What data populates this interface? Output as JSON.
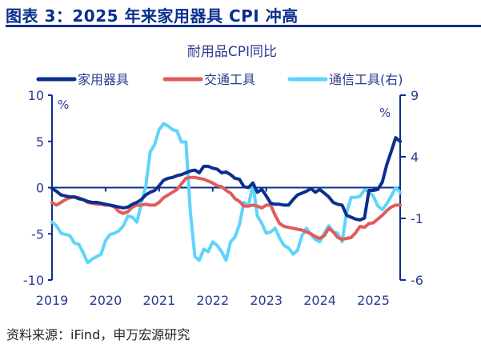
{
  "header": {
    "title": "图表 3：2025 年来家用器具 CPI 冲高"
  },
  "source": "资料来源：iFind，申万宏源研究",
  "chart_data": {
    "type": "line",
    "title": "耐用品CPI同比",
    "x_start": "2019-01",
    "x_frequency": "monthly",
    "x_tick_labels": [
      "2019",
      "2020",
      "2021",
      "2022",
      "2023",
      "2024",
      "2025"
    ],
    "left_axis": {
      "unit": "%",
      "ylim": [
        -10,
        10
      ],
      "ticks": [
        10,
        5,
        0,
        -5,
        -10
      ]
    },
    "right_axis": {
      "unit": "%",
      "ylim": [
        -6,
        9
      ],
      "ticks": [
        9,
        4,
        -1,
        -6
      ]
    },
    "legend_position": "top",
    "grid": false,
    "series": [
      {
        "name": "家用器具",
        "axis": "left",
        "color": "#0b2f8f",
        "values": [
          -0.1,
          -0.4,
          -0.8,
          -0.9,
          -1.0,
          -1.0,
          -1.2,
          -1.3,
          -1.5,
          -1.6,
          -1.6,
          -1.7,
          -1.8,
          -1.9,
          -2.0,
          -2.1,
          -2.2,
          -2.1,
          -1.8,
          -1.6,
          -1.3,
          -0.8,
          -0.5,
          -0.3,
          0.2,
          0.8,
          1.0,
          1.1,
          1.3,
          1.4,
          1.6,
          1.8,
          1.9,
          1.6,
          2.3,
          2.3,
          2.1,
          2.0,
          1.6,
          1.7,
          1.4,
          1.0,
          0.9,
          0.1,
          0.0,
          0.5,
          -0.5,
          -0.2,
          -0.9,
          -1.7,
          -1.8,
          -1.8,
          -1.9,
          -1.9,
          -1.3,
          -0.8,
          -0.6,
          -0.4,
          -0.1,
          -0.5,
          -0.2,
          -0.6,
          -1.0,
          -1.6,
          -1.8,
          -1.9,
          -3.0,
          -3.2,
          -3.4,
          -3.5,
          -3.3,
          -0.3,
          -0.3,
          -0.2,
          0.6,
          2.5,
          3.9,
          5.4,
          5.0
        ]
      },
      {
        "name": "交通工具",
        "axis": "left",
        "color": "#e05c5c",
        "values": [
          -1.6,
          -1.9,
          -1.6,
          -1.3,
          -1.1,
          -1.0,
          -1.1,
          -1.3,
          -1.6,
          -1.7,
          -1.8,
          -1.8,
          -1.9,
          -1.9,
          -2.1,
          -2.6,
          -2.8,
          -2.6,
          -2.1,
          -1.9,
          -1.9,
          -1.8,
          -1.9,
          -1.9,
          -1.6,
          -1.1,
          -0.8,
          -0.5,
          -0.2,
          0.4,
          1.0,
          1.1,
          1.1,
          1.0,
          0.9,
          0.7,
          0.5,
          0.2,
          0.1,
          -0.3,
          -0.6,
          -1.2,
          -1.5,
          -2.0,
          -2.0,
          -1.9,
          -2.0,
          -2.2,
          -1.9,
          -1.9,
          -3.0,
          -3.9,
          -4.2,
          -4.3,
          -4.4,
          -4.5,
          -4.6,
          -4.8,
          -5.0,
          -5.3,
          -5.5,
          -5.2,
          -4.4,
          -4.8,
          -5.4,
          -5.6,
          -5.5,
          -5.4,
          -4.9,
          -4.2,
          -4.3,
          -3.9,
          -3.8,
          -3.4,
          -3.0,
          -2.5,
          -2.1,
          -1.9,
          -1.9
        ]
      },
      {
        "name": "通信工具(右)",
        "axis": "right",
        "color": "#5fd4fa",
        "values": [
          -1.3,
          -1.6,
          -2.2,
          -2.3,
          -2.4,
          -3.0,
          -3.1,
          -3.8,
          -4.6,
          -4.3,
          -4.1,
          -3.9,
          -2.8,
          -2.3,
          -2.2,
          -2.0,
          -1.6,
          -0.8,
          -0.9,
          -1.3,
          0.2,
          1.6,
          4.4,
          5.0,
          6.2,
          6.7,
          6.5,
          6.2,
          6.1,
          5.2,
          5.2,
          -0.5,
          -4.1,
          -4.4,
          -3.5,
          -3.7,
          -2.9,
          -3.2,
          -3.7,
          -4.4,
          -2.9,
          -2.5,
          -1.5,
          0.3,
          0.0,
          1.8,
          -0.8,
          -1.4,
          -2.2,
          -2.1,
          -1.8,
          -2.6,
          -3.2,
          -3.4,
          -3.9,
          -3.6,
          -2.4,
          -1.8,
          -2.3,
          -2.7,
          -2.9,
          -2.2,
          -1.6,
          -2.1,
          -2.2,
          -2.9,
          -0.5,
          0.7,
          0.7,
          0.8,
          1.3,
          1.2,
          0.8,
          0.0,
          -0.3,
          0.2,
          0.8,
          1.5,
          1.1
        ]
      }
    ]
  }
}
